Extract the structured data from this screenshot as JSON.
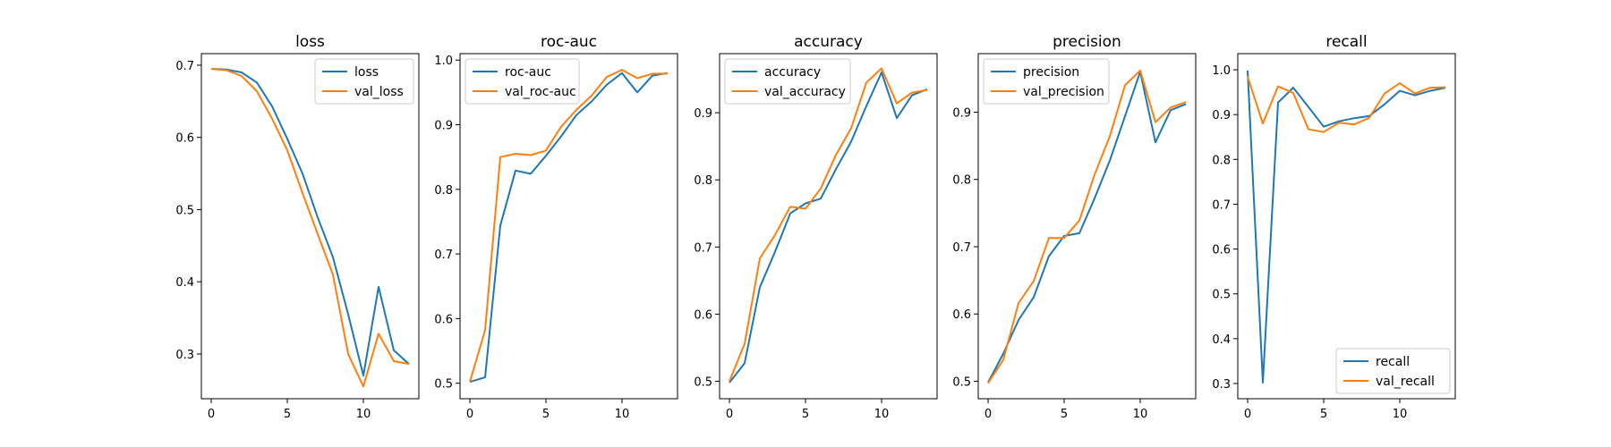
{
  "chart_data": [
    {
      "type": "line",
      "title": "loss",
      "x": [
        0,
        1,
        2,
        3,
        4,
        5,
        6,
        7,
        8,
        9,
        10,
        11,
        12,
        13
      ],
      "xticks": [
        0,
        5,
        10
      ],
      "yticks": [
        0.3,
        0.4,
        0.5,
        0.6,
        0.7
      ],
      "xlim": [
        -0.65,
        13.65
      ],
      "ylim": [
        0.238,
        0.716
      ],
      "legend": "top-right",
      "series": [
        {
          "name": "loss",
          "color": "#1f77b4",
          "values": [
            0.695,
            0.694,
            0.69,
            0.676,
            0.643,
            0.598,
            0.55,
            0.489,
            0.434,
            0.355,
            0.27,
            0.393,
            0.305,
            0.286
          ]
        },
        {
          "name": "val_loss",
          "color": "#ff7f0e",
          "values": [
            0.695,
            0.693,
            0.685,
            0.664,
            0.626,
            0.582,
            0.523,
            0.466,
            0.41,
            0.3,
            0.255,
            0.328,
            0.29,
            0.286
          ]
        }
      ]
    },
    {
      "type": "line",
      "title": "roc-auc",
      "x": [
        0,
        1,
        2,
        3,
        4,
        5,
        6,
        7,
        8,
        9,
        10,
        11,
        12,
        13
      ],
      "xticks": [
        0,
        5,
        10
      ],
      "yticks": [
        0.5,
        0.6,
        0.7,
        0.8,
        0.9,
        1.0
      ],
      "xlim": [
        -0.65,
        13.65
      ],
      "ylim": [
        0.476,
        1.01
      ],
      "legend": "top-left",
      "series": [
        {
          "name": "roc-auc",
          "color": "#1f77b4",
          "values": [
            0.502,
            0.509,
            0.744,
            0.829,
            0.824,
            0.852,
            0.882,
            0.915,
            0.936,
            0.962,
            0.98,
            0.95,
            0.976,
            0.98
          ]
        },
        {
          "name": "val_roc-auc",
          "color": "#ff7f0e",
          "values": [
            0.502,
            0.582,
            0.85,
            0.855,
            0.853,
            0.86,
            0.897,
            0.923,
            0.945,
            0.974,
            0.985,
            0.972,
            0.979,
            0.979
          ]
        }
      ]
    },
    {
      "type": "line",
      "title": "accuracy",
      "x": [
        0,
        1,
        2,
        3,
        4,
        5,
        6,
        7,
        8,
        9,
        10,
        11,
        12,
        13
      ],
      "xticks": [
        0,
        5,
        10
      ],
      "yticks": [
        0.5,
        0.6,
        0.7,
        0.8,
        0.9
      ],
      "xlim": [
        -0.65,
        13.65
      ],
      "ylim": [
        0.474,
        0.988
      ],
      "legend": "top-left",
      "series": [
        {
          "name": "accuracy",
          "color": "#1f77b4",
          "values": [
            0.498,
            0.527,
            0.64,
            0.693,
            0.75,
            0.765,
            0.772,
            0.816,
            0.857,
            0.91,
            0.96,
            0.892,
            0.926,
            0.935
          ]
        },
        {
          "name": "val_accuracy",
          "color": "#ff7f0e",
          "values": [
            0.5,
            0.556,
            0.683,
            0.718,
            0.76,
            0.757,
            0.787,
            0.837,
            0.877,
            0.945,
            0.966,
            0.914,
            0.93,
            0.934
          ]
        }
      ]
    },
    {
      "type": "line",
      "title": "precision",
      "x": [
        0,
        1,
        2,
        3,
        4,
        5,
        6,
        7,
        8,
        9,
        10,
        11,
        12,
        13
      ],
      "xticks": [
        0,
        5,
        10
      ],
      "yticks": [
        0.5,
        0.6,
        0.7,
        0.8,
        0.9
      ],
      "xlim": [
        -0.65,
        13.65
      ],
      "ylim": [
        0.474,
        0.987
      ],
      "legend": "top-left",
      "series": [
        {
          "name": "precision",
          "color": "#1f77b4",
          "values": [
            0.498,
            0.541,
            0.591,
            0.625,
            0.686,
            0.716,
            0.72,
            0.772,
            0.828,
            0.894,
            0.96,
            0.855,
            0.903,
            0.912
          ]
        },
        {
          "name": "val_precision",
          "color": "#ff7f0e",
          "values": [
            0.497,
            0.532,
            0.616,
            0.649,
            0.713,
            0.713,
            0.739,
            0.807,
            0.864,
            0.94,
            0.962,
            0.885,
            0.907,
            0.915
          ]
        }
      ]
    },
    {
      "type": "line",
      "title": "recall",
      "x": [
        0,
        1,
        2,
        3,
        4,
        5,
        6,
        7,
        8,
        9,
        10,
        11,
        12,
        13
      ],
      "xticks": [
        0,
        5,
        10
      ],
      "yticks": [
        0.3,
        0.4,
        0.5,
        0.6,
        0.7,
        0.8,
        0.9,
        1.0
      ],
      "xlim": [
        -0.65,
        13.65
      ],
      "ylim": [
        0.266,
        1.036
      ],
      "legend": "bottom-right",
      "series": [
        {
          "name": "recall",
          "color": "#1f77b4",
          "values": [
            0.998,
            0.302,
            0.927,
            0.96,
            0.917,
            0.873,
            0.885,
            0.892,
            0.897,
            0.923,
            0.953,
            0.943,
            0.953,
            0.96
          ]
        },
        {
          "name": "val_recall",
          "color": "#ff7f0e",
          "values": [
            0.985,
            0.88,
            0.963,
            0.948,
            0.867,
            0.861,
            0.882,
            0.878,
            0.893,
            0.947,
            0.97,
            0.947,
            0.96,
            0.961
          ]
        }
      ]
    }
  ]
}
